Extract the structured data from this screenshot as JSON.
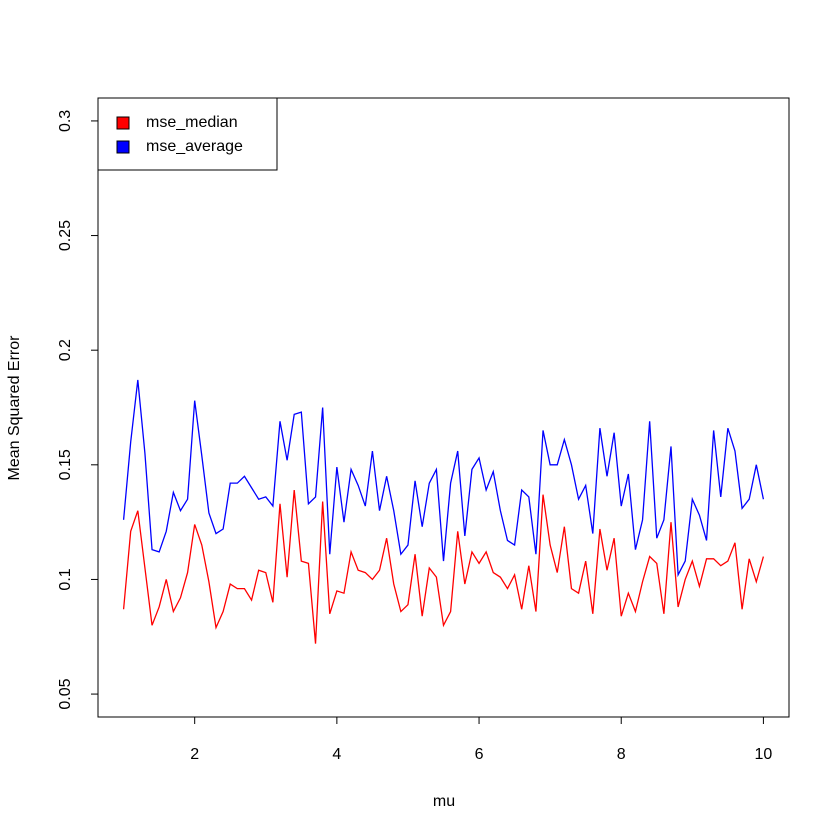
{
  "chart_data": {
    "type": "line",
    "x_label": "mu",
    "y_label": "Mean Squared Error",
    "xlim": [
      0.64,
      10.36
    ],
    "ylim": [
      0.04,
      0.31
    ],
    "xticks": [
      2,
      4,
      6,
      8,
      10
    ],
    "yticks": [
      0.05,
      0.1,
      0.15,
      0.2,
      0.25,
      0.3
    ],
    "legend": "top-left",
    "x": [
      1.0,
      1.1,
      1.2,
      1.3,
      1.4,
      1.5,
      1.6,
      1.7,
      1.8,
      1.9,
      2.0,
      2.1,
      2.2,
      2.3,
      2.4,
      2.5,
      2.6,
      2.7,
      2.8,
      2.9,
      3.0,
      3.1,
      3.2,
      3.3,
      3.4,
      3.5,
      3.6,
      3.7,
      3.8,
      3.9,
      4.0,
      4.1,
      4.2,
      4.3,
      4.4,
      4.5,
      4.6,
      4.7,
      4.8,
      4.9,
      5.0,
      5.1,
      5.2,
      5.3,
      5.4,
      5.5,
      5.6,
      5.7,
      5.8,
      5.9,
      6.0,
      6.1,
      6.2,
      6.3,
      6.4,
      6.5,
      6.6,
      6.7,
      6.8,
      6.9,
      7.0,
      7.1,
      7.2,
      7.3,
      7.4,
      7.5,
      7.6,
      7.7,
      7.8,
      7.9,
      8.0,
      8.1,
      8.2,
      8.3,
      8.4,
      8.5,
      8.6,
      8.7,
      8.8,
      8.9,
      9.0,
      9.1,
      9.2,
      9.3,
      9.4,
      9.5,
      9.6,
      9.7,
      9.8,
      9.9,
      10.0
    ],
    "series": [
      {
        "name": "mse_median",
        "color": "#ff0000",
        "values": [
          0.087,
          0.121,
          0.13,
          0.105,
          0.08,
          0.088,
          0.1,
          0.086,
          0.092,
          0.103,
          0.124,
          0.115,
          0.099,
          0.079,
          0.086,
          0.098,
          0.096,
          0.096,
          0.091,
          0.104,
          0.103,
          0.09,
          0.133,
          0.101,
          0.139,
          0.108,
          0.107,
          0.072,
          0.134,
          0.085,
          0.095,
          0.094,
          0.112,
          0.104,
          0.103,
          0.1,
          0.104,
          0.118,
          0.098,
          0.086,
          0.089,
          0.111,
          0.084,
          0.105,
          0.101,
          0.08,
          0.086,
          0.121,
          0.098,
          0.112,
          0.107,
          0.112,
          0.103,
          0.101,
          0.096,
          0.102,
          0.087,
          0.106,
          0.086,
          0.137,
          0.115,
          0.103,
          0.123,
          0.096,
          0.094,
          0.108,
          0.085,
          0.122,
          0.104,
          0.118,
          0.084,
          0.094,
          0.086,
          0.099,
          0.11,
          0.107,
          0.085,
          0.125,
          0.088,
          0.1,
          0.108,
          0.097,
          0.109,
          0.109,
          0.106,
          0.108,
          0.116,
          0.087,
          0.109,
          0.099,
          0.11
        ]
      },
      {
        "name": "mse_average",
        "color": "#0000ff",
        "values": [
          0.126,
          0.16,
          0.187,
          0.155,
          0.113,
          0.112,
          0.121,
          0.138,
          0.13,
          0.135,
          0.178,
          0.154,
          0.129,
          0.12,
          0.122,
          0.142,
          0.142,
          0.145,
          0.14,
          0.135,
          0.136,
          0.132,
          0.169,
          0.152,
          0.172,
          0.173,
          0.133,
          0.136,
          0.175,
          0.111,
          0.149,
          0.125,
          0.148,
          0.141,
          0.132,
          0.156,
          0.13,
          0.145,
          0.13,
          0.111,
          0.115,
          0.143,
          0.123,
          0.142,
          0.148,
          0.108,
          0.142,
          0.156,
          0.119,
          0.148,
          0.153,
          0.139,
          0.147,
          0.13,
          0.117,
          0.115,
          0.139,
          0.136,
          0.111,
          0.165,
          0.15,
          0.15,
          0.161,
          0.15,
          0.135,
          0.141,
          0.12,
          0.166,
          0.145,
          0.164,
          0.132,
          0.146,
          0.113,
          0.126,
          0.169,
          0.118,
          0.126,
          0.158,
          0.102,
          0.108,
          0.135,
          0.128,
          0.117,
          0.165,
          0.136,
          0.166,
          0.156,
          0.131,
          0.135,
          0.15,
          0.135
        ]
      }
    ]
  }
}
